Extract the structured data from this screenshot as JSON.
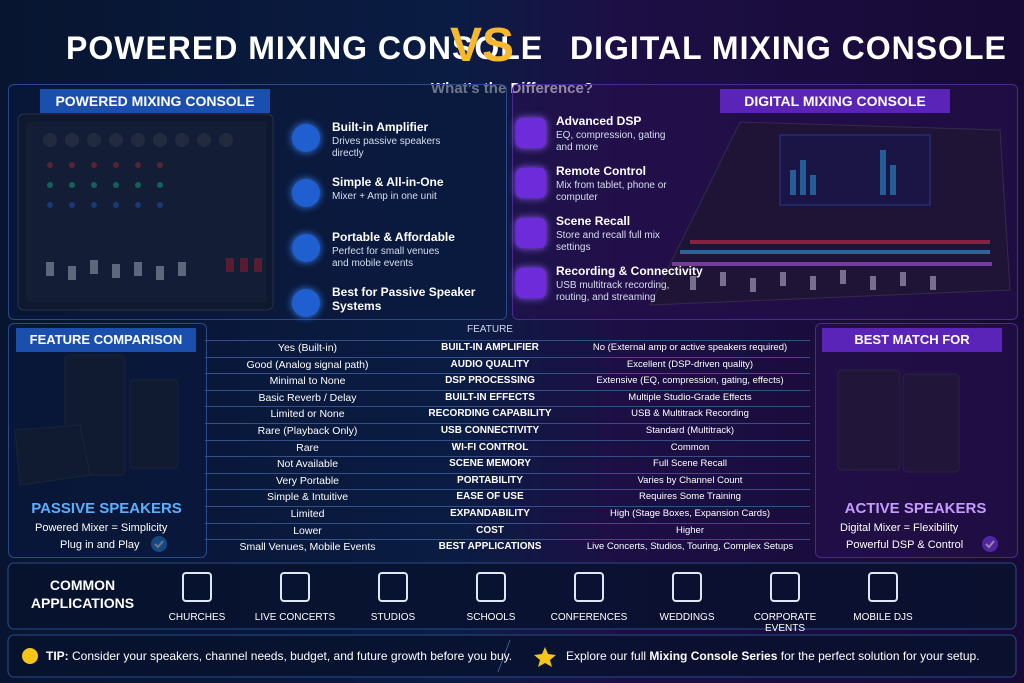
{
  "header": {
    "title_left": "POWERED MIXING CONSOLE",
    "vs": "VS",
    "title_right": "DIGITAL MIXING CONSOLE",
    "subtitle": "What’s the Difference?"
  },
  "powered": {
    "label": "POWERED MIXING CONSOLE",
    "features": [
      {
        "title": "Built-in Amplifier",
        "desc": "Drives passive speakers directly"
      },
      {
        "title": "Simple & All-in-One",
        "desc": "Mixer + Amp in one unit"
      },
      {
        "title": "Portable & Affordable",
        "desc": "Perfect for small venues and mobile events"
      },
      {
        "title": "Best for Passive Speaker Systems",
        "desc": null
      }
    ]
  },
  "digital": {
    "label": "DIGITAL MIXING CONSOLE",
    "features": [
      {
        "title": "Advanced DSP",
        "desc": "EQ, compression, gating and more"
      },
      {
        "title": "Remote Control",
        "desc": "Mix from tablet, phone or computer"
      },
      {
        "title": "Scene Recall",
        "desc": "Store and recall full mix settings"
      },
      {
        "title": "Recording & Connectivity",
        "desc": "USB multitrack recording, routing, and streaming"
      }
    ]
  },
  "comparison": {
    "label": "FEATURE COMPARISON",
    "column_header": "FEATURE",
    "rows": [
      [
        "Yes (Built-in)",
        "BUILT-IN AMPLIFIER",
        "No (External amp or active speakers required)"
      ],
      [
        "Good (Analog signal path)",
        "AUDIO QUALITY",
        "Excellent (DSP-driven quality)"
      ],
      [
        "Minimal to None",
        "DSP PROCESSING",
        "Extensive (EQ, compression, gating, effects)"
      ],
      [
        "Basic Reverb / Delay",
        "BUILT-IN EFFECTS",
        "Multiple Studio-Grade Effects"
      ],
      [
        "Limited or None",
        "RECORDING CAPABILITY",
        "USB & Multitrack Recording"
      ],
      [
        "Rare (Playback Only)",
        "USB CONNECTIVITY",
        "Standard (Multitrack)"
      ],
      [
        "Rare",
        "WI-FI CONTROL",
        "Common"
      ],
      [
        "Not Available",
        "SCENE MEMORY",
        "Full Scene Recall"
      ],
      [
        "Very Portable",
        "PORTABILITY",
        "Varies by Channel Count"
      ],
      [
        "Simple & Intuitive",
        "EASE OF USE",
        "Requires Some Training"
      ],
      [
        "Limited",
        "EXPANDABILITY",
        "High (Stage Boxes, Expansion Cards)"
      ],
      [
        "Lower",
        "COST",
        "Higher"
      ],
      [
        "Small Venues, Mobile Events",
        "BEST APPLICATIONS",
        "Live Concerts, Studios, Touring, Complex Setups"
      ]
    ]
  },
  "passive": {
    "title": "PASSIVE SPEAKERS",
    "lines": [
      "Powered Mixer = Simplicity",
      "Plug in and Play"
    ]
  },
  "best_match": {
    "label": "BEST MATCH FOR",
    "title": "ACTIVE SPEAKERS",
    "lines": [
      "Digital Mixer = Flexibility",
      "Powerful DSP & Control"
    ]
  },
  "applications": {
    "title": [
      "COMMON",
      "APPLICATIONS"
    ],
    "items": [
      "CHURCHES",
      "LIVE CONCERTS",
      "STUDIOS",
      "SCHOOLS",
      "CONFERENCES",
      "WEDDINGS",
      "CORPORATE EVENTS",
      "MOBILE DJS"
    ]
  },
  "tip": {
    "label": "TIP:",
    "text": "Consider your speakers, channel needs, budget, and future growth before you buy."
  },
  "footer": {
    "parts": [
      "Explore our full ",
      "Mixing Console Series",
      " for the perfect solution for your setup."
    ]
  }
}
